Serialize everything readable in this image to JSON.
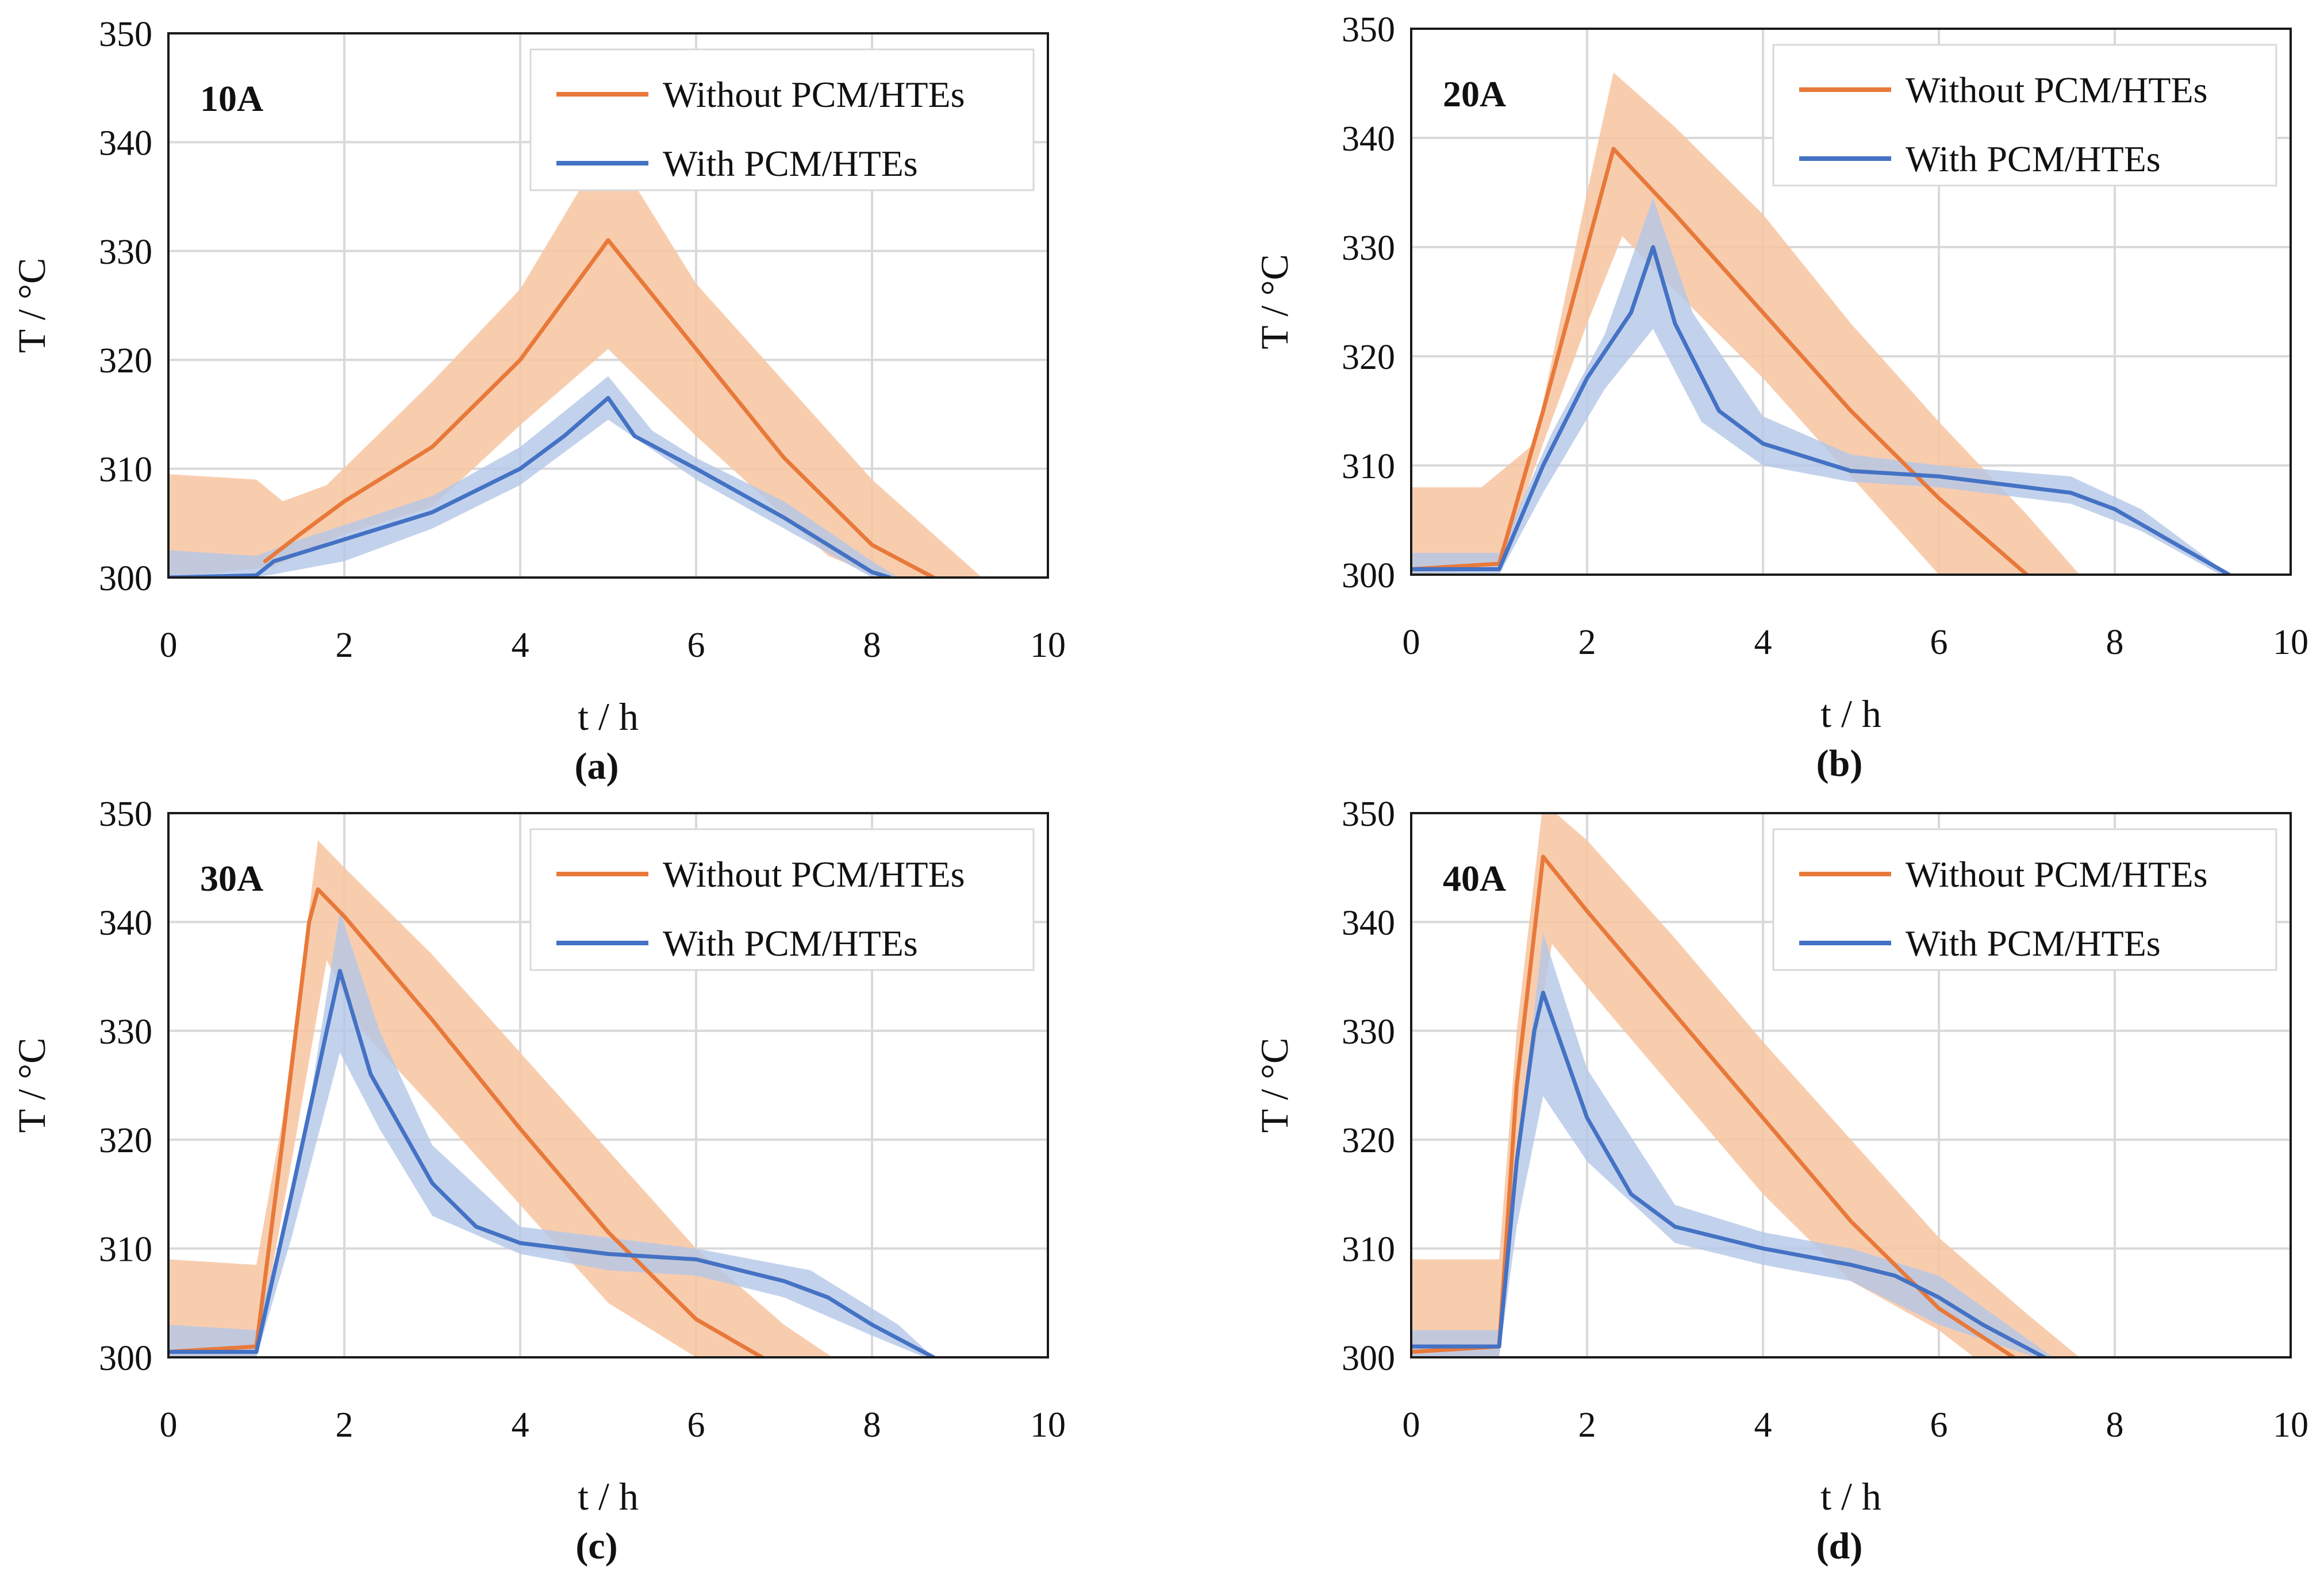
{
  "chart_data": [
    {
      "type": "line",
      "panel_label": "10A",
      "caption": "(a)",
      "xlabel": "t / h",
      "ylabel": "T / °C",
      "xlim": [
        0,
        10
      ],
      "ylim": [
        300,
        350
      ],
      "x_ticks": [
        "0",
        "2",
        "4",
        "6",
        "8",
        "10"
      ],
      "y_ticks": [
        "300",
        "310",
        "320",
        "330",
        "340",
        "350"
      ],
      "grid": true,
      "legend_position": "top-right",
      "series": [
        {
          "name": "Without PCM/HTEs",
          "color": "#e8793a",
          "band_color": "#f7c4a0",
          "x": [
            1.1,
            1.5,
            2.0,
            3.0,
            4.0,
            5.0,
            6.0,
            7.0,
            8.0,
            8.7
          ],
          "y": [
            301.5,
            304.0,
            307.0,
            312.0,
            320.0,
            331.0,
            321.0,
            311.0,
            303.0,
            300.0
          ],
          "upper": [
            [
              0,
              309.5
            ],
            [
              1.0,
              309.0
            ],
            [
              1.3,
              307.0
            ],
            [
              1.8,
              308.5
            ],
            [
              3.0,
              318.0
            ],
            [
              4.0,
              326.5
            ],
            [
              5.0,
              340.0
            ],
            [
              6.0,
              327.0
            ],
            [
              7.0,
              318.0
            ],
            [
              8.0,
              309.0
            ],
            [
              9.25,
              300.0
            ]
          ],
          "lower": [
            [
              0,
              300.0
            ],
            [
              8.1,
              300.0
            ],
            [
              7.5,
              302.0
            ],
            [
              6.0,
              313.0
            ],
            [
              5.0,
              321.0
            ],
            [
              4.0,
              314.0
            ],
            [
              3.0,
              306.5
            ],
            [
              2.0,
              304.0
            ],
            [
              1.2,
              301.0
            ],
            [
              0,
              300.0
            ]
          ]
        },
        {
          "name": "With PCM/HTEs",
          "color": "#4472c4",
          "band_color": "#b4c7e7",
          "x": [
            0,
            1.0,
            1.2,
            2.0,
            3.0,
            4.0,
            4.5,
            5.0,
            5.3,
            6.0,
            7.0,
            7.5,
            8.0,
            8.2
          ],
          "y": [
            300.0,
            300.2,
            301.5,
            303.5,
            306.0,
            310.0,
            313.0,
            316.5,
            313.0,
            310.0,
            305.5,
            303.0,
            300.5,
            300.0
          ],
          "upper": [
            [
              0,
              302.5
            ],
            [
              1.0,
              302.0
            ],
            [
              1.5,
              303.5
            ],
            [
              3.0,
              307.5
            ],
            [
              4.0,
              312.0
            ],
            [
              5.0,
              318.5
            ],
            [
              5.5,
              313.5
            ],
            [
              6.0,
              311.0
            ],
            [
              7.0,
              307.0
            ],
            [
              8.0,
              301.5
            ],
            [
              8.3,
              300.0
            ]
          ],
          "lower": [
            [
              0,
              300.0
            ],
            [
              8.0,
              300.0
            ],
            [
              7.0,
              304.5
            ],
            [
              6.0,
              309.0
            ],
            [
              5.0,
              314.5
            ],
            [
              4.0,
              308.5
            ],
            [
              3.0,
              304.5
            ],
            [
              2.0,
              301.5
            ],
            [
              1.0,
              300.0
            ],
            [
              0,
              300.0
            ]
          ]
        }
      ]
    },
    {
      "type": "line",
      "panel_label": "20A",
      "caption": "(b)",
      "xlabel": "t / h",
      "ylabel": "T / °C",
      "xlim": [
        0,
        10
      ],
      "ylim": [
        300,
        350
      ],
      "x_ticks": [
        "0",
        "2",
        "4",
        "6",
        "8",
        "10"
      ],
      "y_ticks": [
        "300",
        "310",
        "320",
        "330",
        "340",
        "350"
      ],
      "grid": true,
      "legend_position": "top-right",
      "series": [
        {
          "name": "Without PCM/HTEs",
          "color": "#e8793a",
          "band_color": "#f7c4a0",
          "x": [
            0,
            1.0,
            1.5,
            2.0,
            2.3,
            3.0,
            4.0,
            5.0,
            6.0,
            7.0
          ],
          "y": [
            300.5,
            301.0,
            315.0,
            330.0,
            339.0,
            333.0,
            324.0,
            315.0,
            307.0,
            300.0
          ],
          "upper": [
            [
              0,
              308.0
            ],
            [
              0.8,
              308.0
            ],
            [
              1.4,
              312.0
            ],
            [
              2.0,
              335.0
            ],
            [
              2.3,
              346.0
            ],
            [
              3.0,
              341.0
            ],
            [
              4.0,
              333.0
            ],
            [
              5.0,
              323.0
            ],
            [
              6.0,
              314.0
            ],
            [
              7.0,
              305.5
            ],
            [
              7.6,
              300.0
            ]
          ],
          "lower": [
            [
              0,
              300.0
            ],
            [
              6.0,
              300.0
            ],
            [
              5.0,
              309.0
            ],
            [
              4.0,
              318.0
            ],
            [
              3.0,
              326.0
            ],
            [
              2.4,
              331.0
            ],
            [
              2.0,
              323.0
            ],
            [
              1.5,
              312.0
            ],
            [
              1.0,
              300.5
            ],
            [
              0,
              300.0
            ]
          ]
        },
        {
          "name": "With PCM/HTEs",
          "color": "#4472c4",
          "band_color": "#b4c7e7",
          "x": [
            0,
            1.0,
            1.5,
            2.0,
            2.5,
            2.75,
            3.0,
            3.5,
            4.0,
            5.0,
            6.0,
            7.0,
            7.5,
            8.0,
            9.3
          ],
          "y": [
            300.5,
            300.5,
            310.0,
            318.0,
            324.0,
            330.0,
            323.0,
            315.0,
            312.0,
            309.5,
            309.0,
            308.0,
            307.5,
            306.0,
            300.0
          ],
          "upper": [
            [
              0,
              302.0
            ],
            [
              1.0,
              302.0
            ],
            [
              1.6,
              313.0
            ],
            [
              2.2,
              322.0
            ],
            [
              2.75,
              334.5
            ],
            [
              3.2,
              324.0
            ],
            [
              4.0,
              314.5
            ],
            [
              5.0,
              311.0
            ],
            [
              6.0,
              310.0
            ],
            [
              7.5,
              309.0
            ],
            [
              8.3,
              306.0
            ],
            [
              9.3,
              300.0
            ]
          ],
          "lower": [
            [
              0,
              300.0
            ],
            [
              9.2,
              300.0
            ],
            [
              8.3,
              304.0
            ],
            [
              7.5,
              306.5
            ],
            [
              6.0,
              308.0
            ],
            [
              5.0,
              308.5
            ],
            [
              4.0,
              310.0
            ],
            [
              3.3,
              314.0
            ],
            [
              2.75,
              322.5
            ],
            [
              2.2,
              317.0
            ],
            [
              1.5,
              307.5
            ],
            [
              1.0,
              300.0
            ],
            [
              0,
              300.0
            ]
          ]
        }
      ]
    },
    {
      "type": "line",
      "panel_label": "30A",
      "caption": "(c)",
      "xlabel": "t / h",
      "ylabel": "T / °C",
      "xlim": [
        0,
        10
      ],
      "ylim": [
        300,
        350
      ],
      "x_ticks": [
        "0",
        "2",
        "4",
        "6",
        "8",
        "10"
      ],
      "y_ticks": [
        "300",
        "310",
        "320",
        "330",
        "340",
        "350"
      ],
      "grid": true,
      "legend_position": "top-right",
      "series": [
        {
          "name": "Without PCM/HTEs",
          "color": "#e8793a",
          "band_color": "#f7c4a0",
          "x": [
            0,
            1.0,
            1.3,
            1.6,
            1.7,
            2.0,
            3.0,
            4.0,
            5.0,
            6.0,
            6.75
          ],
          "y": [
            300.5,
            301.0,
            320.0,
            340.0,
            343.0,
            340.5,
            331.0,
            321.0,
            311.5,
            303.5,
            300.0
          ],
          "upper": [
            [
              0,
              309.0
            ],
            [
              1.0,
              308.5
            ],
            [
              1.3,
              322.0
            ],
            [
              1.7,
              347.5
            ],
            [
              2.0,
              345.0
            ],
            [
              3.0,
              337.0
            ],
            [
              4.0,
              328.0
            ],
            [
              5.0,
              319.0
            ],
            [
              6.0,
              310.0
            ],
            [
              7.0,
              303.0
            ],
            [
              7.55,
              300.0
            ]
          ],
          "lower": [
            [
              0,
              300.0
            ],
            [
              6.0,
              300.0
            ],
            [
              5.0,
              305.0
            ],
            [
              4.0,
              314.0
            ],
            [
              3.0,
              323.0
            ],
            [
              2.2,
              330.0
            ],
            [
              1.8,
              336.5
            ],
            [
              1.4,
              318.0
            ],
            [
              1.0,
              300.0
            ],
            [
              0,
              300.0
            ]
          ]
        },
        {
          "name": "With PCM/HTEs",
          "color": "#4472c4",
          "band_color": "#b4c7e7",
          "x": [
            0,
            1.0,
            1.4,
            1.8,
            1.95,
            2.3,
            3.0,
            3.5,
            4.0,
            5.0,
            6.0,
            7.0,
            7.5,
            8.0,
            8.7
          ],
          "y": [
            300.5,
            300.5,
            315.0,
            330.0,
            335.5,
            326.0,
            316.0,
            312.0,
            310.5,
            309.5,
            309.0,
            307.0,
            305.5,
            303.0,
            300.0
          ],
          "upper": [
            [
              0,
              303.0
            ],
            [
              1.0,
              302.5
            ],
            [
              1.5,
              318.0
            ],
            [
              1.95,
              341.0
            ],
            [
              2.4,
              330.0
            ],
            [
              3.0,
              319.5
            ],
            [
              4.0,
              312.0
            ],
            [
              5.0,
              311.0
            ],
            [
              6.0,
              310.0
            ],
            [
              7.3,
              308.0
            ],
            [
              8.3,
              303.0
            ],
            [
              8.7,
              300.0
            ]
          ],
          "lower": [
            [
              0,
              300.0
            ],
            [
              8.6,
              300.0
            ],
            [
              8.0,
              302.0
            ],
            [
              7.0,
              305.5
            ],
            [
              6.0,
              307.5
            ],
            [
              5.0,
              308.0
            ],
            [
              4.0,
              309.5
            ],
            [
              3.0,
              313.0
            ],
            [
              2.4,
              321.0
            ],
            [
              1.95,
              328.0
            ],
            [
              1.4,
              311.0
            ],
            [
              1.0,
              300.0
            ],
            [
              0,
              300.0
            ]
          ]
        }
      ]
    },
    {
      "type": "line",
      "panel_label": "40A",
      "caption": "(d)",
      "xlabel": "t / h",
      "ylabel": "T / °C",
      "xlim": [
        0,
        10
      ],
      "ylim": [
        300,
        350
      ],
      "x_ticks": [
        "0",
        "2",
        "4",
        "6",
        "8",
        "10"
      ],
      "y_ticks": [
        "300",
        "310",
        "320",
        "330",
        "340",
        "350"
      ],
      "grid": true,
      "legend_position": "top-right",
      "series": [
        {
          "name": "Without PCM/HTEs",
          "color": "#e8793a",
          "band_color": "#f7c4a0",
          "x": [
            0,
            1.0,
            1.2,
            1.5,
            2.0,
            3.0,
            4.0,
            5.0,
            6.0,
            6.85
          ],
          "y": [
            300.5,
            301.0,
            325.0,
            346.0,
            341.0,
            331.5,
            322.0,
            312.5,
            304.5,
            300.0
          ],
          "upper": [
            [
              0,
              309.0
            ],
            [
              1.0,
              309.0
            ],
            [
              1.2,
              330.0
            ],
            [
              1.5,
              351.0
            ],
            [
              2.0,
              347.5
            ],
            [
              3.0,
              338.5
            ],
            [
              4.0,
              329.0
            ],
            [
              5.0,
              320.0
            ],
            [
              6.0,
              311.0
            ],
            [
              7.0,
              304.0
            ],
            [
              7.6,
              300.0
            ]
          ],
          "lower": [
            [
              0,
              300.0
            ],
            [
              6.4,
              300.0
            ],
            [
              6.0,
              302.5
            ],
            [
              5.0,
              307.0
            ],
            [
              4.0,
              315.0
            ],
            [
              3.0,
              324.5
            ],
            [
              2.0,
              334.0
            ],
            [
              1.6,
              338.0
            ],
            [
              1.2,
              318.0
            ],
            [
              1.0,
              300.0
            ],
            [
              0,
              300.0
            ]
          ]
        },
        {
          "name": "With PCM/HTEs",
          "color": "#4472c4",
          "band_color": "#b4c7e7",
          "x": [
            0,
            1.0,
            1.2,
            1.4,
            1.5,
            2.0,
            2.5,
            3.0,
            4.0,
            5.0,
            5.5,
            6.0,
            6.5,
            7.2
          ],
          "y": [
            301.0,
            301.0,
            318.0,
            330.0,
            333.5,
            322.0,
            315.0,
            312.0,
            310.0,
            308.5,
            307.5,
            305.5,
            303.0,
            300.0
          ],
          "upper": [
            [
              0,
              302.5
            ],
            [
              1.0,
              302.5
            ],
            [
              1.3,
              325.0
            ],
            [
              1.5,
              339.0
            ],
            [
              2.0,
              326.5
            ],
            [
              3.0,
              314.0
            ],
            [
              4.0,
              311.5
            ],
            [
              5.0,
              310.0
            ],
            [
              6.0,
              307.5
            ],
            [
              7.3,
              300.0
            ]
          ],
          "lower": [
            [
              0,
              300.0
            ],
            [
              7.1,
              300.0
            ],
            [
              6.0,
              303.0
            ],
            [
              5.0,
              307.0
            ],
            [
              4.0,
              308.5
            ],
            [
              3.0,
              310.5
            ],
            [
              2.0,
              318.0
            ],
            [
              1.5,
              324.0
            ],
            [
              1.2,
              312.0
            ],
            [
              1.0,
              300.0
            ],
            [
              0,
              300.0
            ]
          ]
        }
      ]
    }
  ]
}
